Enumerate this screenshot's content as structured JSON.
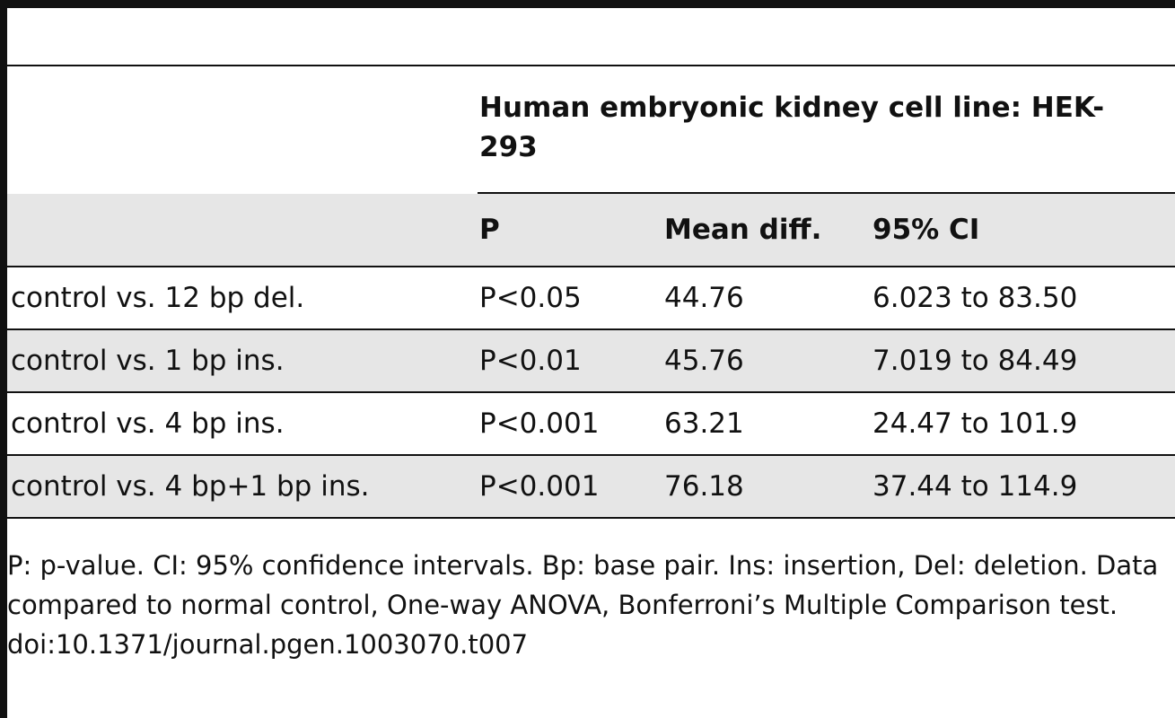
{
  "table": {
    "group_header": "Human embryonic kidney cell line: HEK-293",
    "columns": [
      "",
      "P",
      "Mean diff.",
      "95% CI"
    ],
    "rows": [
      {
        "comparison": "control vs. 12 bp del.",
        "p": "P<0.05",
        "mean_diff": "44.76",
        "ci": "6.023 to 83.50"
      },
      {
        "comparison": "control vs. 1 bp ins.",
        "p": "P<0.01",
        "mean_diff": "45.76",
        "ci": "7.019 to 84.49"
      },
      {
        "comparison": "control vs. 4 bp ins.",
        "p": "P<0.001",
        "mean_diff": "63.21",
        "ci": "24.47 to 101.9"
      },
      {
        "comparison": "control vs. 4 bp+1 bp ins.",
        "p": "P<0.001",
        "mean_diff": "76.18",
        "ci": "37.44 to 114.9"
      }
    ]
  },
  "footnote": {
    "text": "P: p-value. CI: 95% confidence intervals. Bp: base pair. Ins: insertion, Del: deletion. Data compared to normal control, One-way ANOVA, Bonferroni’s Multiple Comparison test.",
    "doi": "doi:10.1371/journal.pgen.1003070.t007"
  }
}
